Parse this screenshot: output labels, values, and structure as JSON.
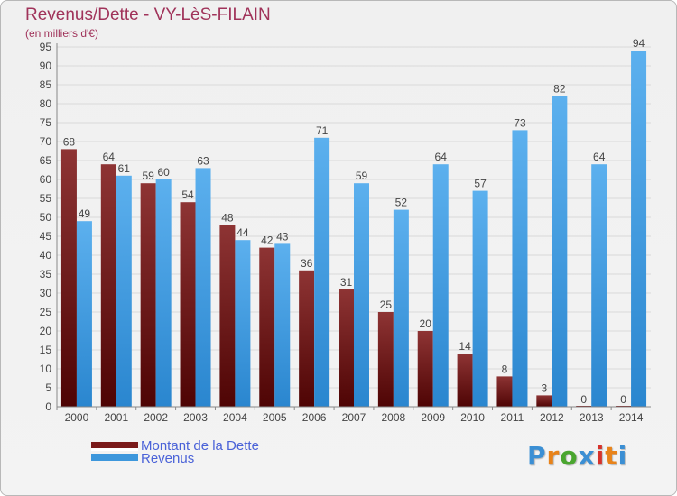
{
  "header": {
    "title": "Revenus/Dette - VY-LèS-FILAIN",
    "subtitle": "(en milliers d'€)"
  },
  "legend": {
    "items": [
      {
        "label": "Montant de la Dette",
        "color": "#7a1a1a"
      },
      {
        "label": "Revenus",
        "color": "#3d97dc"
      }
    ]
  },
  "logo": {
    "text": "Proxiti",
    "colors": [
      "#3b8fd4",
      "#e8831a",
      "#4aa62f",
      "#3b8fd4",
      "#d6322b",
      "#e8831a",
      "#3b8fd4"
    ]
  },
  "chart_data": {
    "type": "bar",
    "title": "Revenus/Dette - VY-LèS-FILAIN",
    "subtitle": "(en milliers d'€)",
    "categories": [
      "2000",
      "2001",
      "2002",
      "2003",
      "2004",
      "2005",
      "2006",
      "2007",
      "2008",
      "2009",
      "2010",
      "2011",
      "2012",
      "2013",
      "2014"
    ],
    "series": [
      {
        "name": "Montant de la Dette",
        "color": "#7a1a1a",
        "values": [
          68,
          64,
          59,
          54,
          48,
          42,
          36,
          31,
          25,
          20,
          14,
          8,
          3,
          0,
          0
        ]
      },
      {
        "name": "Revenus",
        "color": "#3d97dc",
        "values": [
          49,
          61,
          60,
          63,
          44,
          43,
          71,
          59,
          52,
          64,
          57,
          73,
          82,
          64,
          94
        ]
      }
    ],
    "ylim": [
      0,
      95
    ],
    "yticks": [
      0,
      5,
      10,
      15,
      20,
      25,
      30,
      35,
      40,
      45,
      50,
      55,
      60,
      65,
      70,
      75,
      80,
      85,
      90,
      95
    ],
    "grid": true,
    "legend_position": "bottom-left"
  }
}
